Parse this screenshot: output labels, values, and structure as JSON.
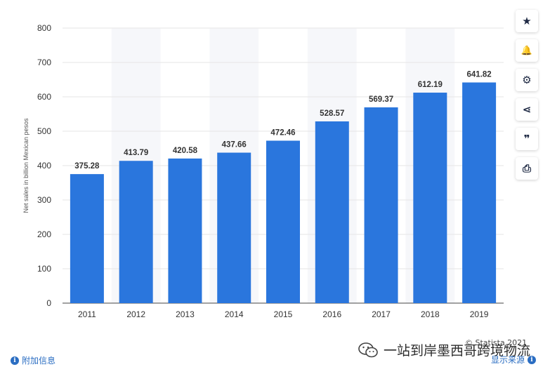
{
  "chart_data": {
    "type": "bar",
    "categories": [
      "2011",
      "2012",
      "2013",
      "2014",
      "2015",
      "2016",
      "2017",
      "2018",
      "2019"
    ],
    "values": [
      375.28,
      413.79,
      420.58,
      437.66,
      472.46,
      528.57,
      569.37,
      612.19,
      641.82
    ],
    "data_labels": [
      "375.28",
      "413.79",
      "420.58",
      "437.66",
      "472.46",
      "528.57",
      "569.37",
      "612.19",
      "641.82"
    ],
    "ylabel": "Net sales in billion Mexican pesos",
    "ylim": [
      0,
      800
    ],
    "yticks": [
      "0",
      "100",
      "200",
      "300",
      "400",
      "500",
      "600",
      "700",
      "800"
    ],
    "grid": true,
    "bar_color": "#2a76dd"
  },
  "toolbar": {
    "items": [
      {
        "icon": "star-icon",
        "glyph": "★"
      },
      {
        "icon": "bell-icon",
        "glyph": "🔔"
      },
      {
        "icon": "gear-icon",
        "glyph": "⚙"
      },
      {
        "icon": "share-icon",
        "glyph": "⋖"
      },
      {
        "icon": "quote-icon",
        "glyph": "❞"
      },
      {
        "icon": "print-icon",
        "glyph": "⎙"
      }
    ]
  },
  "footer": {
    "additional_info": "附加信息",
    "show_source": "显示来源",
    "copyright": "© Statista 2021"
  },
  "watermark": {
    "text": "一站到岸墨西哥跨境物流"
  },
  "colors": {
    "link": "#2a6dc2",
    "grid": "#e6e6e6",
    "alt_band": "#f6f7fa"
  }
}
